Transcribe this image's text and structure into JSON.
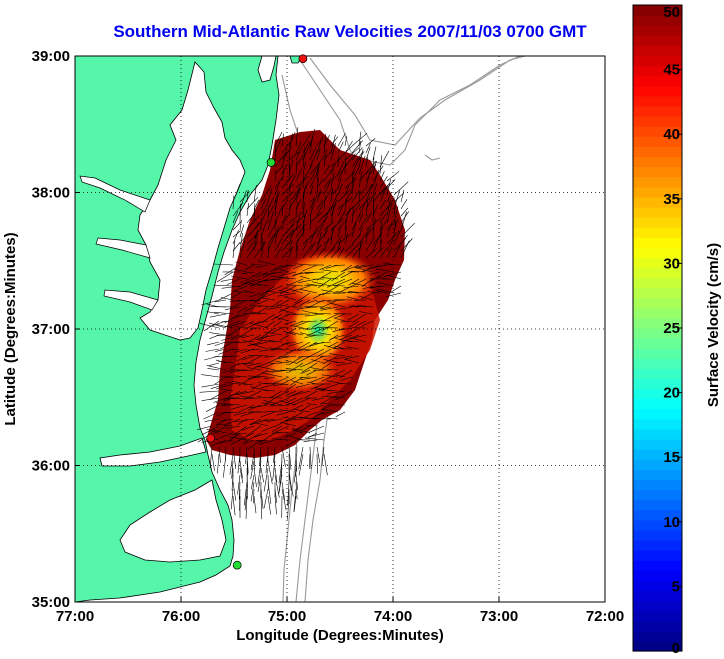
{
  "title": "Southern Mid-Atlantic Raw Velocities 2007/11/03 0700 GMT",
  "x_axis": {
    "label": "Longitude (Degrees:Minutes)",
    "ticks": [
      {
        "value": -77,
        "label": "77:00"
      },
      {
        "value": -76,
        "label": "76:00"
      },
      {
        "value": -75,
        "label": "75:00"
      },
      {
        "value": -74,
        "label": "74:00"
      },
      {
        "value": -73,
        "label": "73:00"
      },
      {
        "value": -72,
        "label": "72:00"
      }
    ],
    "range": [
      -77,
      -72
    ]
  },
  "y_axis": {
    "label": "Latitude (Degrees:Minutes)",
    "ticks": [
      {
        "value": 35,
        "label": "35:00"
      },
      {
        "value": 36,
        "label": "36:00"
      },
      {
        "value": 37,
        "label": "37:00"
      },
      {
        "value": 38,
        "label": "38:00"
      },
      {
        "value": 39,
        "label": "39:00"
      }
    ],
    "range": [
      35,
      39
    ]
  },
  "colorbar": {
    "label": "Surface Velocity (cm/s)",
    "min": 0,
    "max": 50,
    "ticks": [
      {
        "value": 0,
        "label": "0"
      },
      {
        "value": 5,
        "label": "5"
      },
      {
        "value": 10,
        "label": "10"
      },
      {
        "value": 15,
        "label": "15"
      },
      {
        "value": 20,
        "label": "20"
      },
      {
        "value": 25,
        "label": "25"
      },
      {
        "value": 30,
        "label": "30"
      },
      {
        "value": 35,
        "label": "35"
      },
      {
        "value": 40,
        "label": "40"
      },
      {
        "value": 45,
        "label": "45"
      },
      {
        "value": 50,
        "label": "50"
      }
    ]
  },
  "colors": {
    "land": "#55f5aa",
    "bathymetry": "#999999",
    "grid": "#000000",
    "title": "#0000ee",
    "station_green": "#22dd33",
    "station_red": "#ee1111"
  },
  "stations": [
    {
      "name": "station-north-red",
      "lon": -74.85,
      "lat": 38.98,
      "color": "red"
    },
    {
      "name": "station-north-green",
      "lon": -75.15,
      "lat": 38.22,
      "color": "green"
    },
    {
      "name": "station-south-red",
      "lon": -75.72,
      "lat": 36.2,
      "color": "red"
    },
    {
      "name": "station-south-green",
      "lon": -75.47,
      "lat": 35.27,
      "color": "green"
    }
  ],
  "grid": {
    "on": true,
    "style": "dotted"
  }
}
